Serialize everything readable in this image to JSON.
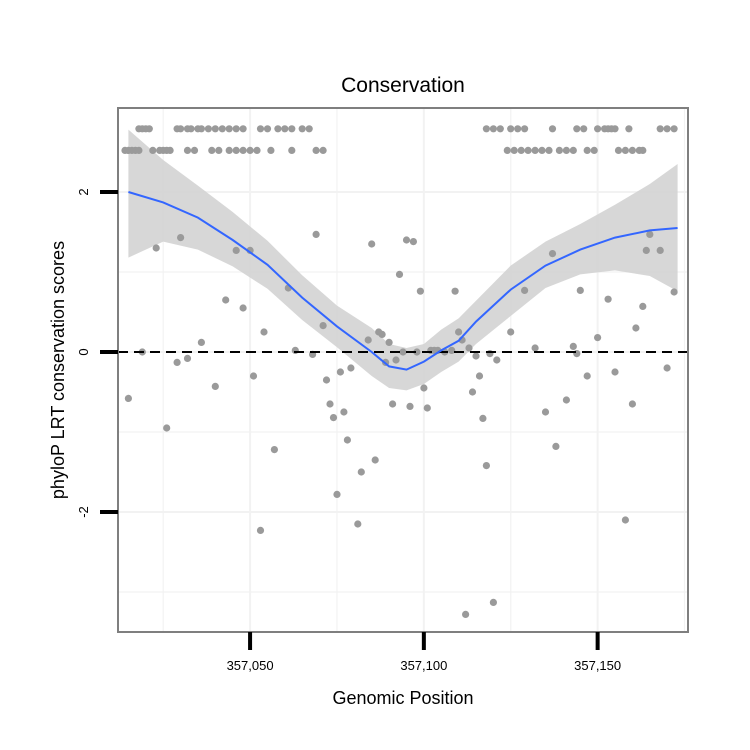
{
  "chart_data": {
    "type": "scatter",
    "title": "Conservation",
    "xlabel": "Genomic Position",
    "ylabel": "phyloP LRT conservation scores",
    "xlim": [
      357012,
      357176
    ],
    "ylim": [
      -3.5,
      3.05
    ],
    "x_ticks": [
      357050,
      357100,
      357150
    ],
    "x_tick_labels": [
      "357,050",
      "357,100",
      "357,150"
    ],
    "y_ticks": [
      -2,
      0,
      2
    ],
    "y_tick_labels": [
      "-2",
      "0",
      "2"
    ],
    "grid_minor_y": [
      -3,
      -1,
      1
    ],
    "reference_line": {
      "y": 0,
      "style": "dashed"
    },
    "colors": {
      "points": "#9a9a9a",
      "smooth_line": "#3366ff",
      "ribbon": "#d3d3d3",
      "grid": "#f2f2f2",
      "panel_border": "#7f7f7f",
      "reference_line": "#000000"
    },
    "smooth": {
      "x": [
        357015,
        357025,
        357035,
        357045,
        357055,
        357065,
        357075,
        357085,
        357090,
        357095,
        357100,
        357105,
        357110,
        357115,
        357125,
        357135,
        357145,
        357155,
        357165,
        357173
      ],
      "y": [
        2.0,
        1.87,
        1.68,
        1.4,
        1.09,
        0.68,
        0.32,
        0.0,
        -0.18,
        -0.22,
        -0.12,
        0.02,
        0.14,
        0.38,
        0.78,
        1.08,
        1.28,
        1.43,
        1.52,
        1.55
      ],
      "ymin": [
        1.18,
        1.38,
        1.28,
        1.07,
        0.79,
        0.4,
        0.06,
        -0.3,
        -0.45,
        -0.48,
        -0.4,
        -0.25,
        -0.12,
        0.1,
        0.45,
        0.8,
        0.97,
        1.02,
        0.95,
        0.76
      ],
      "ymax": [
        2.78,
        2.4,
        2.08,
        1.75,
        1.39,
        0.96,
        0.58,
        0.3,
        0.1,
        0.05,
        0.1,
        0.28,
        0.42,
        0.64,
        1.08,
        1.38,
        1.6,
        1.84,
        2.1,
        2.35
      ]
    },
    "points": [
      [
        357015,
        -0.58
      ],
      [
        357019,
        0.0
      ],
      [
        357023,
        1.3
      ],
      [
        357026,
        -0.95
      ],
      [
        357029,
        -0.13
      ],
      [
        357030,
        1.43
      ],
      [
        357032,
        -0.08
      ],
      [
        357036,
        0.12
      ],
      [
        357040,
        -0.43
      ],
      [
        357043,
        0.65
      ],
      [
        357046,
        1.27
      ],
      [
        357048,
        0.55
      ],
      [
        357050,
        1.27
      ],
      [
        357051,
        -0.3
      ],
      [
        357053,
        -2.23
      ],
      [
        357054,
        0.25
      ],
      [
        357057,
        -1.22
      ],
      [
        357061,
        0.8
      ],
      [
        357063,
        0.02
      ],
      [
        357068,
        -0.03
      ],
      [
        357069,
        1.47
      ],
      [
        357071,
        0.33
      ],
      [
        357072,
        -0.35
      ],
      [
        357073,
        -0.65
      ],
      [
        357074,
        -0.82
      ],
      [
        357075,
        -1.78
      ],
      [
        357076,
        -0.25
      ],
      [
        357077,
        -0.75
      ],
      [
        357078,
        -1.1
      ],
      [
        357079,
        -0.2
      ],
      [
        357081,
        -2.15
      ],
      [
        357082,
        -1.5
      ],
      [
        357084,
        0.15
      ],
      [
        357085,
        1.35
      ],
      [
        357086,
        -1.35
      ],
      [
        357087,
        0.25
      ],
      [
        357088,
        0.22
      ],
      [
        357089,
        -0.13
      ],
      [
        357090,
        0.12
      ],
      [
        357091,
        -0.65
      ],
      [
        357092,
        -0.1
      ],
      [
        357093,
        0.97
      ],
      [
        357094,
        0.0
      ],
      [
        357095,
        1.4
      ],
      [
        357096,
        -0.68
      ],
      [
        357097,
        1.38
      ],
      [
        357098,
        0.0
      ],
      [
        357099,
        0.76
      ],
      [
        357100,
        -0.45
      ],
      [
        357101,
        -0.7
      ],
      [
        357102,
        0.02
      ],
      [
        357103,
        0.02
      ],
      [
        357104,
        0.02
      ],
      [
        357106,
        0.0
      ],
      [
        357108,
        0.02
      ],
      [
        357109,
        0.76
      ],
      [
        357110,
        0.25
      ],
      [
        357111,
        0.15
      ],
      [
        357112,
        -3.28
      ],
      [
        357113,
        0.05
      ],
      [
        357114,
        -0.5
      ],
      [
        357115,
        -0.05
      ],
      [
        357116,
        -0.3
      ],
      [
        357117,
        -0.83
      ],
      [
        357118,
        -1.42
      ],
      [
        357119,
        -0.02
      ],
      [
        357120,
        -3.13
      ],
      [
        357121,
        -0.1
      ],
      [
        357125,
        0.25
      ],
      [
        357129,
        0.77
      ],
      [
        357132,
        0.05
      ],
      [
        357135,
        -0.75
      ],
      [
        357137,
        1.23
      ],
      [
        357138,
        -1.18
      ],
      [
        357141,
        -0.6
      ],
      [
        357143,
        0.07
      ],
      [
        357144,
        -0.02
      ],
      [
        357145,
        0.77
      ],
      [
        357147,
        -0.3
      ],
      [
        357150,
        0.18
      ],
      [
        357153,
        0.66
      ],
      [
        357155,
        -0.25
      ],
      [
        357158,
        -2.1
      ],
      [
        357160,
        -0.65
      ],
      [
        357161,
        0.3
      ],
      [
        357163,
        0.57
      ],
      [
        357164,
        1.27
      ],
      [
        357165,
        1.47
      ],
      [
        357168,
        1.27
      ],
      [
        357170,
        -0.2
      ],
      [
        357172,
        0.75
      ],
      [
        357014,
        2.52
      ],
      [
        357015,
        2.52
      ],
      [
        357016,
        2.52
      ],
      [
        357017,
        2.52
      ],
      [
        357018,
        2.52
      ],
      [
        357018,
        2.79
      ],
      [
        357019,
        2.79
      ],
      [
        357020,
        2.79
      ],
      [
        357021,
        2.79
      ],
      [
        357022,
        2.52
      ],
      [
        357024,
        2.52
      ],
      [
        357025,
        2.52
      ],
      [
        357026,
        2.52
      ],
      [
        357027,
        2.52
      ],
      [
        357029,
        2.79
      ],
      [
        357030,
        2.79
      ],
      [
        357032,
        2.79
      ],
      [
        357033,
        2.79
      ],
      [
        357035,
        2.79
      ],
      [
        357036,
        2.79
      ],
      [
        357038,
        2.79
      ],
      [
        357040,
        2.79
      ],
      [
        357042,
        2.79
      ],
      [
        357044,
        2.79
      ],
      [
        357046,
        2.79
      ],
      [
        357048,
        2.79
      ],
      [
        357032,
        2.52
      ],
      [
        357034,
        2.52
      ],
      [
        357039,
        2.52
      ],
      [
        357041,
        2.52
      ],
      [
        357044,
        2.52
      ],
      [
        357046,
        2.52
      ],
      [
        357048,
        2.52
      ],
      [
        357050,
        2.52
      ],
      [
        357052,
        2.52
      ],
      [
        357053,
        2.79
      ],
      [
        357055,
        2.79
      ],
      [
        357058,
        2.79
      ],
      [
        357060,
        2.79
      ],
      [
        357062,
        2.79
      ],
      [
        357065,
        2.79
      ],
      [
        357067,
        2.79
      ],
      [
        357069,
        2.52
      ],
      [
        357071,
        2.52
      ],
      [
        357056,
        2.52
      ],
      [
        357062,
        2.52
      ],
      [
        357118,
        2.79
      ],
      [
        357120,
        2.79
      ],
      [
        357122,
        2.79
      ],
      [
        357125,
        2.79
      ],
      [
        357127,
        2.79
      ],
      [
        357129,
        2.79
      ],
      [
        357124,
        2.52
      ],
      [
        357126,
        2.52
      ],
      [
        357128,
        2.52
      ],
      [
        357130,
        2.52
      ],
      [
        357132,
        2.52
      ],
      [
        357134,
        2.52
      ],
      [
        357136,
        2.52
      ],
      [
        357137,
        2.79
      ],
      [
        357139,
        2.52
      ],
      [
        357141,
        2.52
      ],
      [
        357143,
        2.52
      ],
      [
        357144,
        2.79
      ],
      [
        357146,
        2.79
      ],
      [
        357147,
        2.52
      ],
      [
        357149,
        2.52
      ],
      [
        357150,
        2.79
      ],
      [
        357152,
        2.79
      ],
      [
        357153,
        2.79
      ],
      [
        357154,
        2.79
      ],
      [
        357155,
        2.79
      ],
      [
        357156,
        2.52
      ],
      [
        357158,
        2.52
      ],
      [
        357160,
        2.52
      ],
      [
        357162,
        2.52
      ],
      [
        357163,
        2.52
      ],
      [
        357159,
        2.79
      ],
      [
        357168,
        2.79
      ],
      [
        357170,
        2.79
      ],
      [
        357172,
        2.79
      ]
    ]
  }
}
